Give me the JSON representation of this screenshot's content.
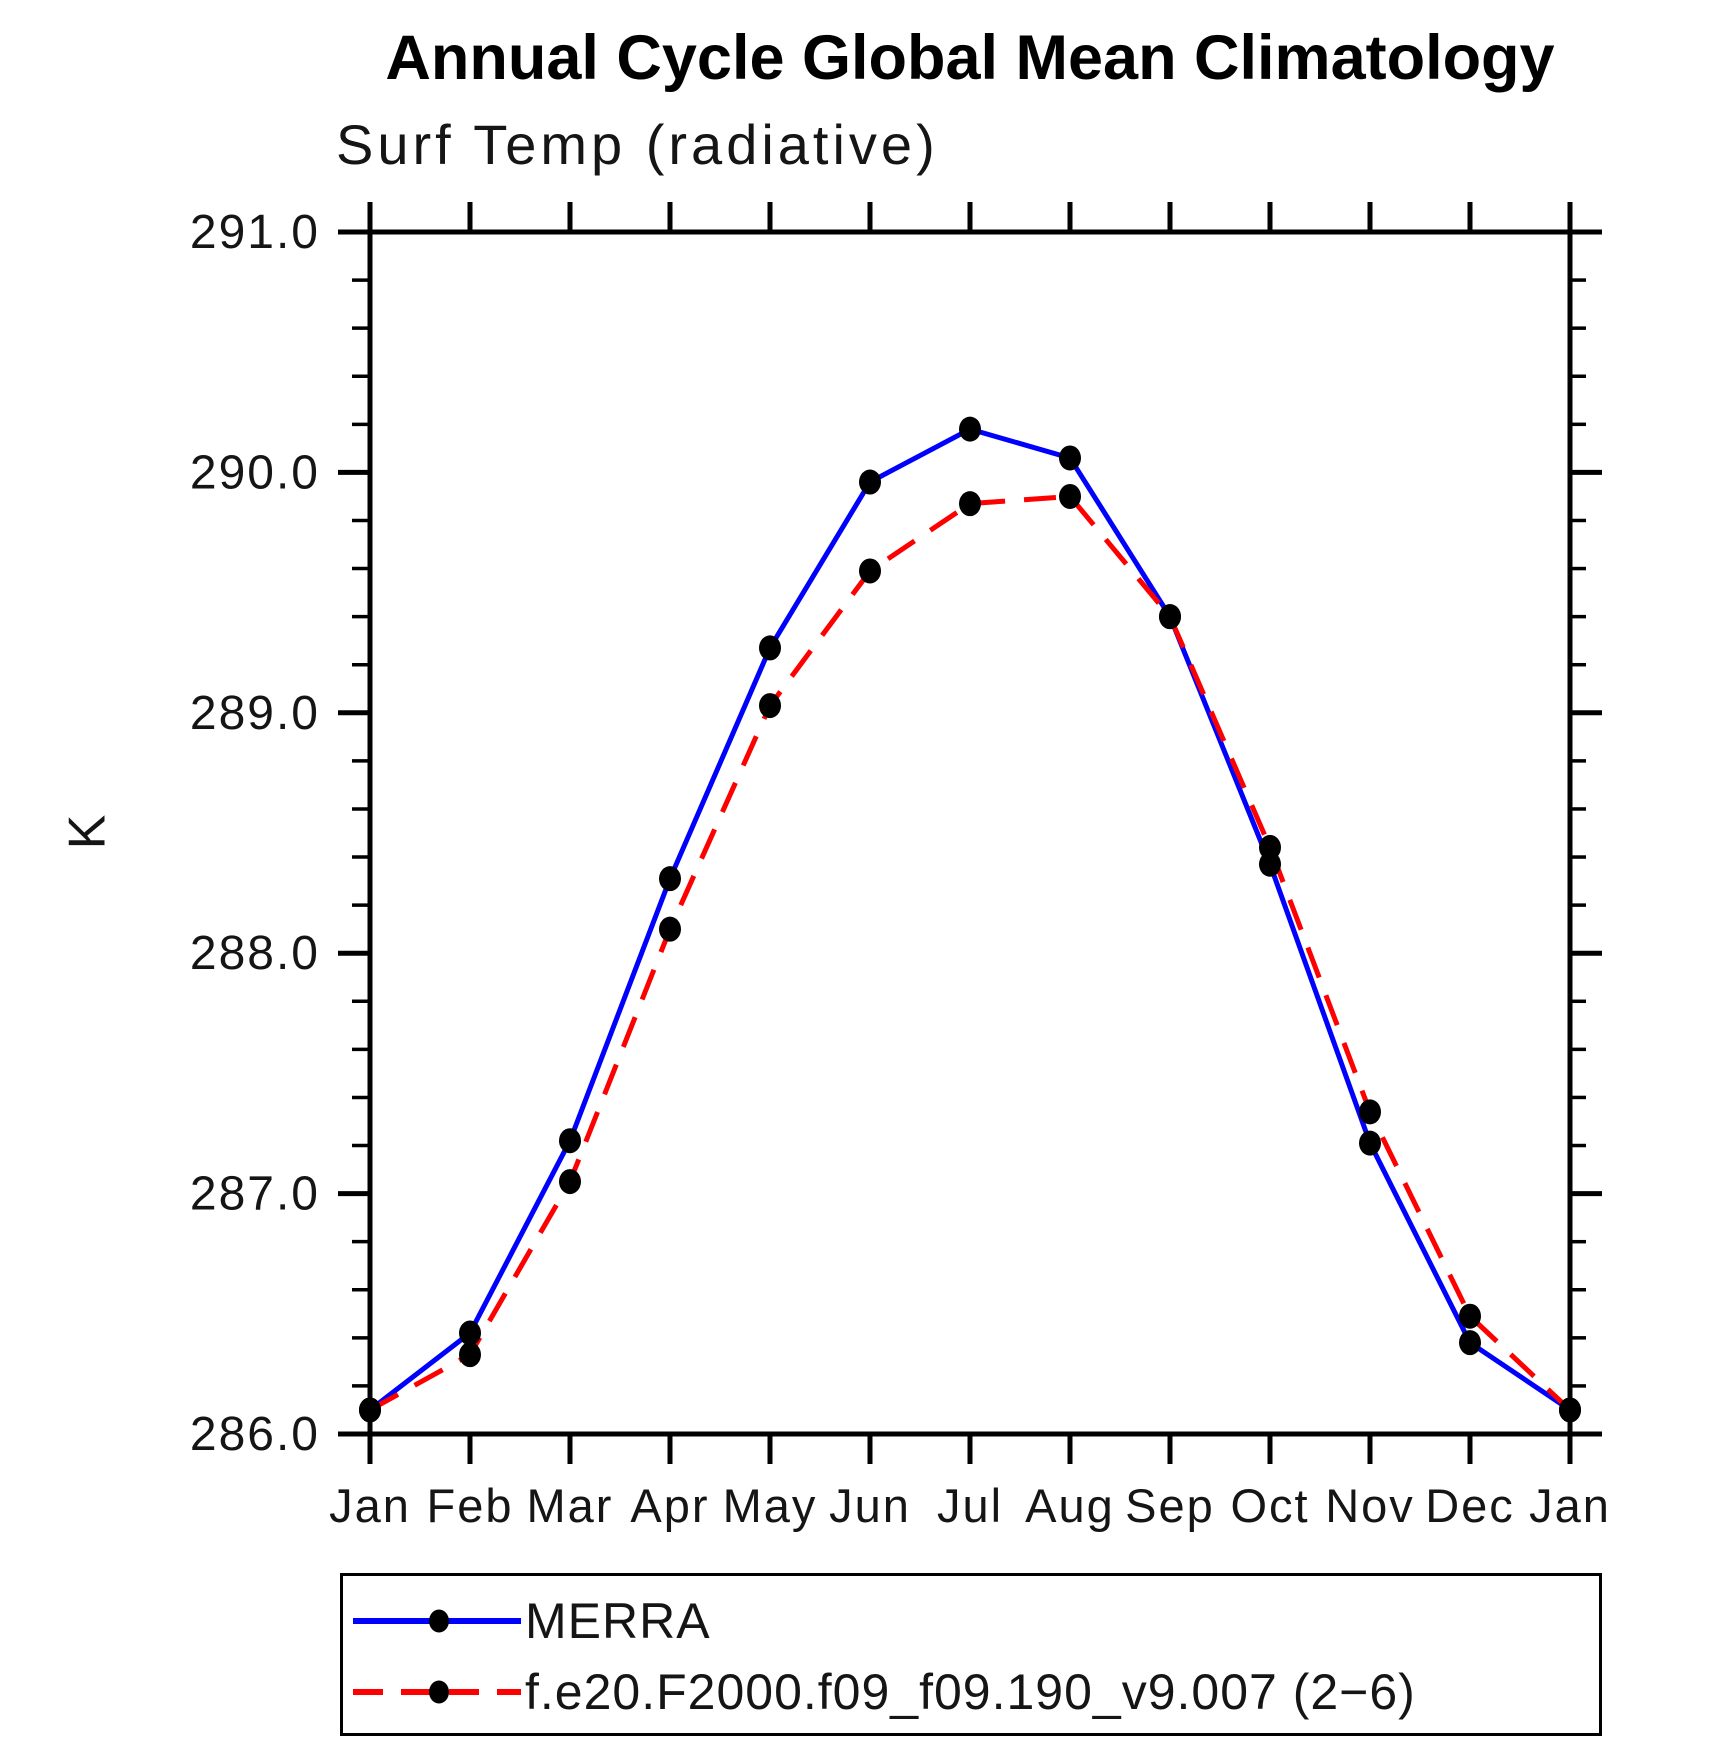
{
  "header": {
    "title": "Annual Cycle Global Mean Climatology",
    "subtitle": "Surf Temp (radiative)"
  },
  "axes": {
    "ylabel": "K"
  },
  "chart_data": {
    "type": "line",
    "title": "Annual Cycle Global Mean Climatology",
    "subtitle": "Surf Temp (radiative)",
    "xlabel": "",
    "ylabel": "K",
    "categories": [
      "Jan",
      "Feb",
      "Mar",
      "Apr",
      "May",
      "Jun",
      "Jul",
      "Aug",
      "Sep",
      "Oct",
      "Nov",
      "Dec",
      "Jan"
    ],
    "ylim": [
      286.0,
      291.0
    ],
    "ytick_interval": 1.0,
    "yminor_interval": 0.2,
    "ytick_labels": [
      "286.0",
      "287.0",
      "288.0",
      "289.0",
      "290.0",
      "291.0"
    ],
    "grid": false,
    "legend_position": "bottom-left",
    "marker": "filled-circle",
    "marker_color": "#000000",
    "series": [
      {
        "name": "MERRA",
        "color": "#0000ff",
        "line_style": "solid",
        "values": [
          286.1,
          286.42,
          287.22,
          288.31,
          289.27,
          289.96,
          290.18,
          290.06,
          289.4,
          288.37,
          287.21,
          286.38,
          286.1
        ]
      },
      {
        "name": "f.e20.F2000.f09_f09.190_v9.007 (2−6)",
        "color": "#ff0000",
        "line_style": "dashed",
        "values": [
          286.1,
          286.33,
          287.05,
          288.1,
          289.03,
          289.59,
          289.87,
          289.9,
          289.4,
          288.44,
          287.34,
          286.49,
          286.1
        ]
      }
    ]
  }
}
